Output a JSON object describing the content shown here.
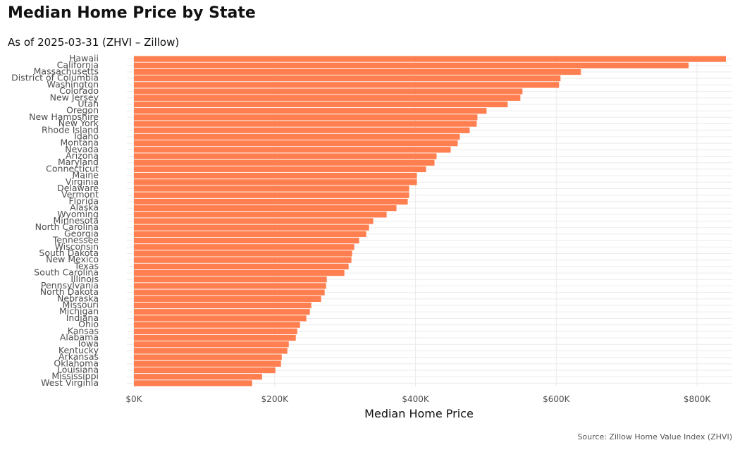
{
  "header": {
    "title": "Median Home Price by State",
    "subtitle": "As of 2025-03-31 (ZHVI – Zillow)"
  },
  "footer": {
    "caption": "Source: Zillow Home Value Index (ZHVI)"
  },
  "colors": {
    "bar": "#ff7f50",
    "grid": "#ebebeb",
    "axis_text": "#4d4d4d"
  },
  "chart_data": {
    "type": "bar",
    "orientation": "horizontal",
    "title": "Median Home Price by State",
    "subtitle": "As of 2025-03-31 (ZHVI – Zillow)",
    "xlabel": "Median Home Price",
    "ylabel": "",
    "xlim": [
      0,
      850000
    ],
    "x_ticks": [
      0,
      200000,
      400000,
      600000,
      800000
    ],
    "x_tick_labels": [
      "$0K",
      "$200K",
      "$400K",
      "$600K",
      "$800K"
    ],
    "grid": true,
    "legend": "none",
    "categories": [
      "Hawaii",
      "California",
      "Massachusetts",
      "District of Columbia",
      "Washington",
      "Colorado",
      "New Jersey",
      "Utah",
      "Oregon",
      "New Hampshire",
      "New York",
      "Rhode Island",
      "Idaho",
      "Montana",
      "Nevada",
      "Arizona",
      "Maryland",
      "Connecticut",
      "Maine",
      "Virginia",
      "Delaware",
      "Vermont",
      "Florida",
      "Alaska",
      "Wyoming",
      "Minnesota",
      "North Carolina",
      "Georgia",
      "Tennessee",
      "Wisconsin",
      "South Dakota",
      "New Mexico",
      "Texas",
      "South Carolina",
      "Illinois",
      "Pennsylvania",
      "North Dakota",
      "Nebraska",
      "Missouri",
      "Michigan",
      "Indiana",
      "Ohio",
      "Kansas",
      "Alabama",
      "Iowa",
      "Kentucky",
      "Arkansas",
      "Oklahoma",
      "Louisiana",
      "Mississippi",
      "West Virginia"
    ],
    "values": [
      841000,
      788000,
      635000,
      606000,
      604000,
      552000,
      549000,
      531000,
      501000,
      488000,
      487000,
      477000,
      463000,
      460000,
      450000,
      430000,
      427000,
      415000,
      402000,
      402000,
      391000,
      391000,
      389000,
      373000,
      359000,
      340000,
      334000,
      330000,
      320000,
      313000,
      310000,
      309000,
      305000,
      299000,
      274000,
      273000,
      271000,
      266000,
      252000,
      250000,
      245000,
      236000,
      232000,
      230000,
      220000,
      218000,
      210000,
      209000,
      201000,
      182000,
      168000
    ]
  }
}
